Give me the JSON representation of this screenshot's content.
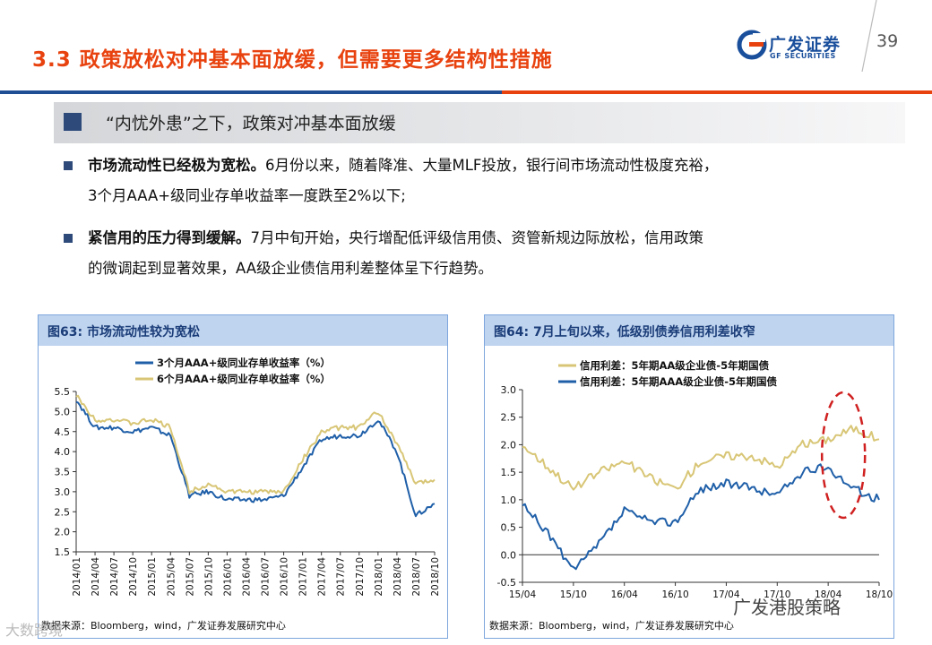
{
  "header": {
    "title": "3.3 政策放松对冲基本面放缓，但需要更多结构性措施",
    "logo_cn": "广发证券",
    "logo_en": "GF SECURITIES",
    "page_number": "39",
    "colors": {
      "accent_red": "#e8420f",
      "brand_blue": "#1f4e95"
    }
  },
  "subheading": "“内忧外患”之下，政策对冲基本面放缓",
  "bullets": [
    {
      "bold": "市场流动性已经极为宽松。",
      "text": "6月份以来，随着降准、大量MLF投放，银行间市场流动性极度充裕，",
      "line2": "3个月AAA+级同业存单收益率一度跌至2%以下;"
    },
    {
      "bold": "紧信用的压力得到缓解。",
      "text": "7月中旬开始，央行增配低评级信用债、资管新规边际放松，信用政策",
      "line2": "的微调起到显著效果，AA级企业债信用利差整体呈下行趋势。"
    }
  ],
  "charts": [
    {
      "title": "图63:  市场流动性较为宽松",
      "source": "数据来源：Bloomberg，wind，广发证券发展研究中心"
    },
    {
      "title": "图64:  7月上旬以来，低级别债券信用利差收窄",
      "source": "数据来源：Bloomberg，wind，广发证券发展研究中心"
    }
  ],
  "chart_data": [
    {
      "type": "line",
      "title": "图63:  市场流动性较为宽松",
      "x": [
        "2014/01",
        "2014/04",
        "2014/07",
        "2014/10",
        "2015/01",
        "2015/04",
        "2015/07",
        "2015/10",
        "2016/01",
        "2016/04",
        "2016/07",
        "2016/10",
        "2017/01",
        "2017/04",
        "2017/07",
        "2017/10",
        "2018/01",
        "2018/04",
        "2018/07",
        "2018/10"
      ],
      "ylim": [
        1.5,
        5.5
      ],
      "yticks": [
        "5.5",
        "5.0",
        "4.5",
        "4.0",
        "3.5",
        "3.0",
        "2.5",
        "2.0",
        "1.5"
      ],
      "series": [
        {
          "name": "3个月AAA+级同业存单收益率（%）",
          "color": "#1f5fa8",
          "values": [
            5.3,
            4.6,
            4.6,
            4.5,
            4.6,
            4.4,
            2.9,
            3.0,
            2.8,
            2.8,
            2.8,
            2.9,
            3.6,
            4.3,
            4.4,
            4.4,
            4.8,
            4.0,
            2.4,
            2.7
          ]
        },
        {
          "name": "6个月AAA+级同业存单收益率（%）",
          "color": "#d8c676",
          "values": [
            5.4,
            4.8,
            4.8,
            4.7,
            4.8,
            4.6,
            3.0,
            3.2,
            3.0,
            3.0,
            3.0,
            3.0,
            3.8,
            4.5,
            4.6,
            4.6,
            5.0,
            4.2,
            3.2,
            3.3
          ]
        }
      ],
      "grid": false,
      "legend": "top"
    },
    {
      "type": "line",
      "title": "图64:  7月上旬以来，低级别债券信用利差收窄",
      "x": [
        "15/04",
        "15/07",
        "15/10",
        "16/01",
        "16/04",
        "16/07",
        "16/10",
        "17/01",
        "17/04",
        "17/07",
        "17/10",
        "18/01",
        "18/04",
        "18/07",
        "18/10"
      ],
      "xticks": [
        "15/04",
        "15/10",
        "16/04",
        "16/10",
        "17/04",
        "17/10",
        "18/04",
        "18/10"
      ],
      "ylim": [
        -0.5,
        3.0
      ],
      "yticks": [
        "3.0",
        "2.5",
        "2.0",
        "1.5",
        "1.0",
        "0.5",
        "0.0",
        "-0.5"
      ],
      "series": [
        {
          "name": "信用利差：5年期AA级企业债-5年期国债",
          "color": "#d8c676",
          "values": [
            2.0,
            1.6,
            1.2,
            1.5,
            1.7,
            1.4,
            1.2,
            1.7,
            1.8,
            1.8,
            1.6,
            2.0,
            2.1,
            2.3,
            2.1
          ]
        },
        {
          "name": "信用利差：5年期AAA级企业债-5年期国债",
          "color": "#1f5fa8",
          "values": [
            0.9,
            0.4,
            -0.3,
            0.2,
            0.8,
            0.6,
            0.6,
            1.2,
            1.3,
            1.2,
            1.1,
            1.5,
            1.6,
            1.2,
            1.0
          ]
        }
      ],
      "annotation": "dashed-red-ellipse",
      "grid": false,
      "legend": "top"
    }
  ],
  "watermarks": {
    "right": "广发港股策略",
    "left": "大数跨境"
  }
}
